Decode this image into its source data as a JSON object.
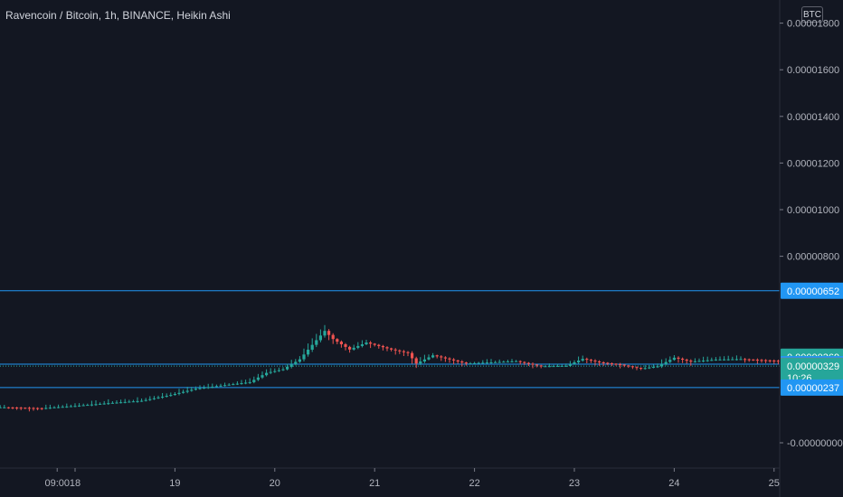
{
  "header": {
    "title": "Ravencoin / Bitcoin, 1h, BINANCE, Heikin Ashi",
    "currency": "BTC"
  },
  "chart_data": {
    "type": "candlestick",
    "title": "Ravencoin / Bitcoin, 1h, BINANCE, Heikin Ashi",
    "ylim": [
      -1e-07,
      1.9e-06
    ],
    "y_ticks": [
      "0.00001800",
      "0.00001600",
      "0.00001400",
      "0.00001200",
      "0.00001000",
      "0.00000800",
      "-0.00000000"
    ],
    "y_tick_values": [
      1.8e-05,
      1.6e-05,
      1.4e-05,
      1.2e-05,
      1e-05,
      8e-06,
      0.0
    ],
    "x_ticks": [
      {
        "label": "09:00",
        "t": -4.3
      },
      {
        "label": "18",
        "t": 0
      },
      {
        "label": "19",
        "t": 24
      },
      {
        "label": "20",
        "t": 48
      },
      {
        "label": "21",
        "t": 72
      },
      {
        "label": "22",
        "t": 96
      },
      {
        "label": "23",
        "t": 120
      },
      {
        "label": "24",
        "t": 144
      },
      {
        "label": "25",
        "t": 168
      }
    ],
    "horizontal_lines": [
      {
        "value": 6.52e-06,
        "label": "0.00000652",
        "color": "#2196f3"
      },
      {
        "value": 3.37e-06,
        "label": "0.00000337",
        "color": "#2196f3"
      },
      {
        "value": 2.37e-06,
        "label": "0.00000237",
        "color": "#2196f3"
      }
    ],
    "price_tags": [
      {
        "value": 3.69e-06,
        "label": "0.00000369",
        "color": "#26a69a"
      },
      {
        "value": 3.37e-06,
        "label": "0.00000337",
        "color": "#2196f3"
      },
      {
        "value": 3.3e-06,
        "label": "0.00000330",
        "color": "#ef5350"
      },
      {
        "value": 3.29e-06,
        "label": "0.00000329",
        "sub": "10:26",
        "color": "#26a69a"
      },
      {
        "value": 2.37e-06,
        "label": "0.00000237",
        "color": "#2196f3"
      }
    ],
    "grid": false,
    "series": {
      "anchors": [
        [
          -17,
          1.52e-06
        ],
        [
          -8,
          1.48e-06
        ],
        [
          0,
          1.58e-06
        ],
        [
          8,
          1.7e-06
        ],
        [
          16,
          1.8e-06
        ],
        [
          23,
          2.05e-06
        ],
        [
          29,
          2.32e-06
        ],
        [
          35,
          2.45e-06
        ],
        [
          42,
          2.6e-06
        ],
        [
          46,
          3e-06
        ],
        [
          50,
          3.15e-06
        ],
        [
          54,
          3.58e-06
        ],
        [
          57,
          4.2e-06
        ],
        [
          60,
          4.8e-06
        ],
        [
          62,
          4.45e-06
        ],
        [
          66,
          4e-06
        ],
        [
          70,
          4.3e-06
        ],
        [
          76,
          4e-06
        ],
        [
          80,
          3.85e-06
        ],
        [
          82,
          3.4e-06
        ],
        [
          86,
          3.75e-06
        ],
        [
          94,
          3.4e-06
        ],
        [
          100,
          3.45e-06
        ],
        [
          106,
          3.5e-06
        ],
        [
          112,
          3.28e-06
        ],
        [
          118,
          3.3e-06
        ],
        [
          122,
          3.6e-06
        ],
        [
          126,
          3.45e-06
        ],
        [
          131,
          3.35e-06
        ],
        [
          136,
          3.18e-06
        ],
        [
          140,
          3.28e-06
        ],
        [
          144,
          3.65e-06
        ],
        [
          148,
          3.48e-06
        ],
        [
          154,
          3.57e-06
        ],
        [
          160,
          3.59e-06
        ],
        [
          170,
          3.5e-06
        ]
      ]
    }
  }
}
